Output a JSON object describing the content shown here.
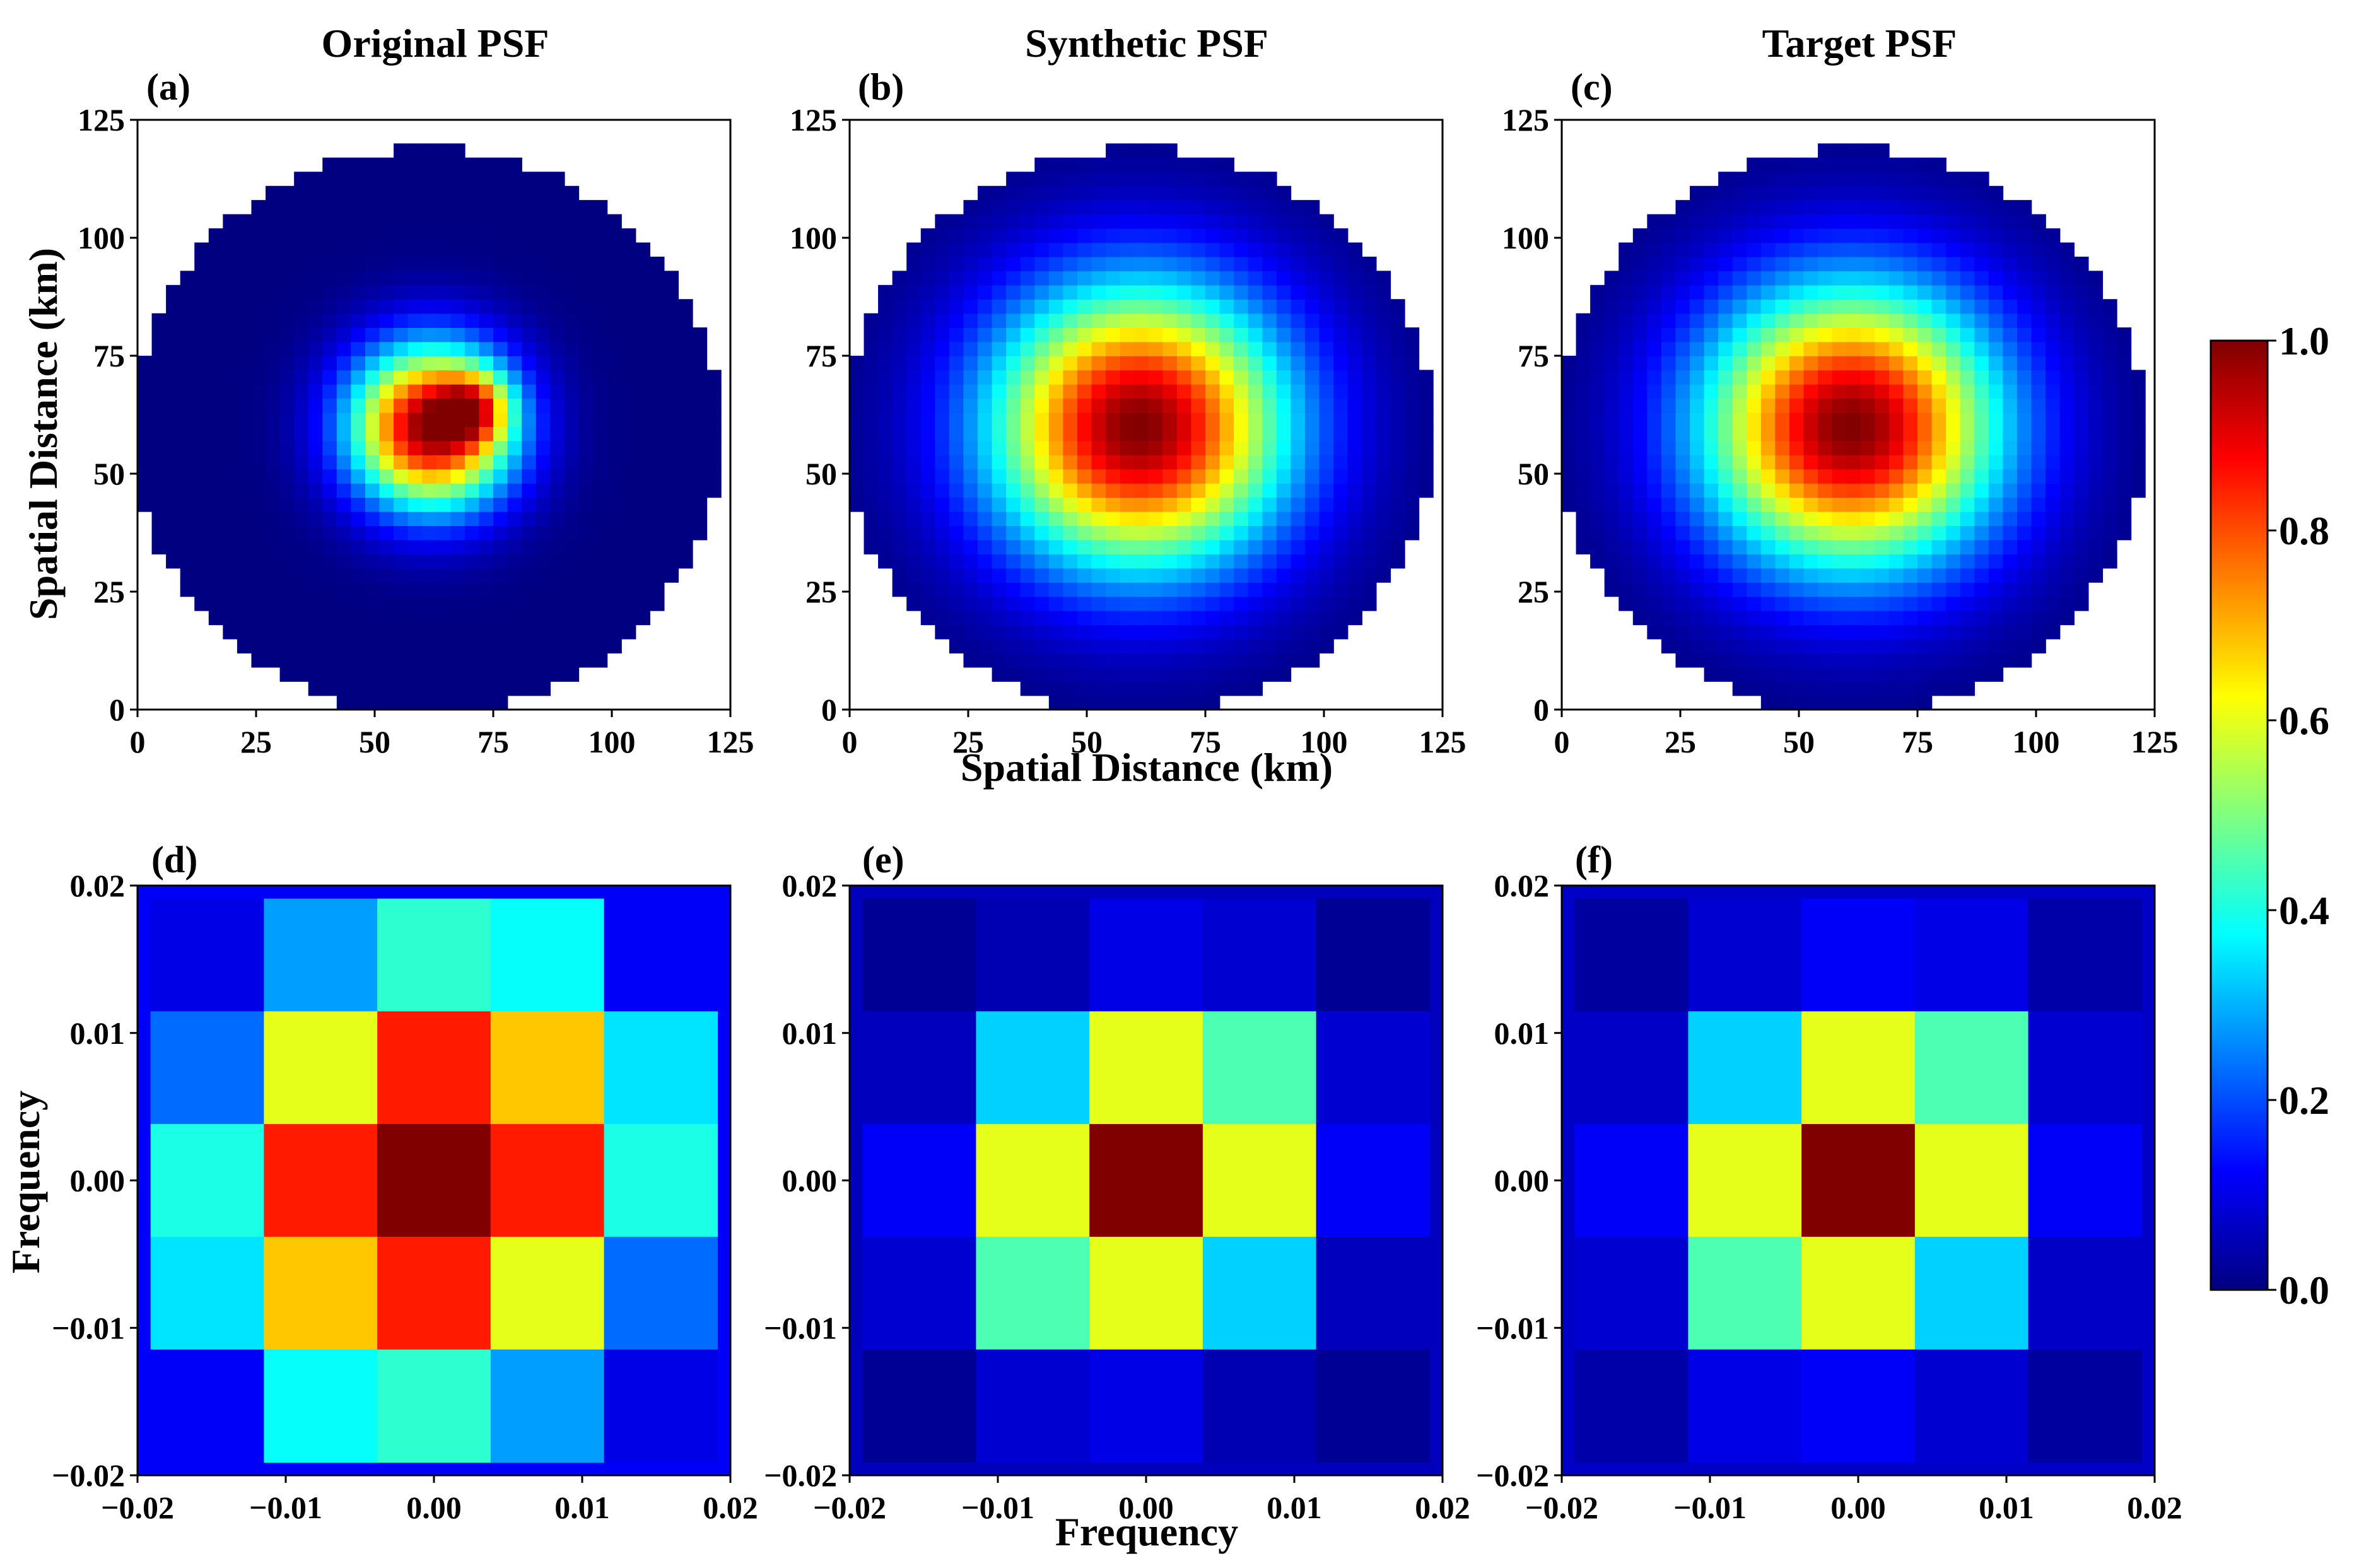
{
  "figure": {
    "panels": [
      {
        "id": "a",
        "label": "(a)",
        "title": "Original PSF"
      },
      {
        "id": "b",
        "label": "(b)",
        "title": "Synthetic PSF"
      },
      {
        "id": "c",
        "label": "(c)",
        "title": "Target PSF"
      },
      {
        "id": "d",
        "label": "(d)",
        "title": ""
      },
      {
        "id": "e",
        "label": "(e)",
        "title": ""
      },
      {
        "id": "f",
        "label": "(f)",
        "title": ""
      }
    ],
    "top_xlabel": "Spatial Distance (km)",
    "top_ylabel": "Spatial Distance (km)",
    "bottom_xlabel": "Frequency",
    "bottom_ylabel": "Frequency",
    "colorbar": {
      "ticks": [
        "0.0",
        "0.2",
        "0.4",
        "0.6",
        "0.8",
        "1.0"
      ],
      "colormap": "jet",
      "range": [
        0,
        1
      ]
    }
  },
  "chart_data": [
    {
      "type": "heatmap",
      "panel": "a",
      "title": "Original PSF",
      "xlabel": "",
      "ylabel": "Spatial Distance (km)",
      "xlim": [
        0,
        125
      ],
      "ylim": [
        0,
        125
      ],
      "grid": false,
      "xticks": [
        "0",
        "25",
        "50",
        "75",
        "100",
        "125"
      ],
      "yticks": [
        "0",
        "25",
        "50",
        "75",
        "100",
        "125"
      ],
      "center": [
        62,
        60
      ],
      "peak": 1.0,
      "sigma_x": 12,
      "sigma_y": 12,
      "lobe": {
        "center": [
          71,
          64
        ],
        "amp": 0.35,
        "sigma": 5
      },
      "support_center": [
        61,
        59
      ],
      "support_radius_x": 62,
      "support_radius_y": 60,
      "grid_step_km": 3,
      "masked": "outside support (white)"
    },
    {
      "type": "heatmap",
      "panel": "b",
      "title": "Synthetic PSF",
      "xlabel": "Spatial Distance (km)",
      "ylabel": "",
      "xlim": [
        0,
        125
      ],
      "ylim": [
        0,
        125
      ],
      "grid": false,
      "xticks": [
        "0",
        "25",
        "50",
        "75",
        "100",
        "125"
      ],
      "yticks": [
        "0",
        "25",
        "50",
        "75",
        "100",
        "125"
      ],
      "center": [
        61,
        60
      ],
      "peak": 1.0,
      "sigma_x": 22,
      "sigma_y": 21,
      "support_center": [
        61,
        59
      ],
      "support_radius_x": 62,
      "support_radius_y": 60,
      "grid_step_km": 3,
      "masked": "outside support (white)"
    },
    {
      "type": "heatmap",
      "panel": "c",
      "title": "Target PSF",
      "xlabel": "",
      "ylabel": "",
      "xlim": [
        0,
        125
      ],
      "ylim": [
        0,
        125
      ],
      "grid": false,
      "xticks": [
        "0",
        "25",
        "50",
        "75",
        "100",
        "125"
      ],
      "yticks": [
        "0",
        "25",
        "50",
        "75",
        "100",
        "125"
      ],
      "center": [
        61,
        60
      ],
      "peak": 1.0,
      "sigma_x": 22,
      "sigma_y": 21,
      "support_center": [
        61,
        59
      ],
      "support_radius_x": 62,
      "support_radius_y": 60,
      "grid_step_km": 3,
      "masked": "outside support (white)"
    },
    {
      "type": "heatmap",
      "panel": "d",
      "title": "",
      "xlabel": "",
      "ylabel": "Frequency",
      "xlim": [
        -0.02,
        0.02
      ],
      "ylim": [
        -0.02,
        0.02
      ],
      "grid": false,
      "xticks": [
        "−0.02",
        "−0.01",
        "0.00",
        "0.01",
        "0.02"
      ],
      "yticks": [
        "−0.02",
        "−0.01",
        "0.00",
        "0.01",
        "0.02"
      ],
      "values": [
        [
          0.1,
          0.28,
          0.42,
          0.38,
          0.12
        ],
        [
          0.23,
          0.6,
          0.85,
          0.68,
          0.35
        ],
        [
          0.4,
          0.85,
          1.0,
          0.85,
          0.4
        ],
        [
          0.35,
          0.68,
          0.85,
          0.6,
          0.23
        ],
        [
          0.12,
          0.38,
          0.42,
          0.28,
          0.1
        ]
      ],
      "border_value": 0.12
    },
    {
      "type": "heatmap",
      "panel": "e",
      "title": "",
      "xlabel": "Frequency",
      "ylabel": "",
      "xlim": [
        -0.02,
        0.02
      ],
      "ylim": [
        -0.02,
        0.02
      ],
      "grid": false,
      "xticks": [
        "−0.02",
        "−0.01",
        "0.00",
        "0.01",
        "0.02"
      ],
      "yticks": [
        "−0.02",
        "−0.01",
        "0.00",
        "0.01",
        "0.02"
      ],
      "values": [
        [
          0.02,
          0.05,
          0.1,
          0.08,
          0.02
        ],
        [
          0.06,
          0.33,
          0.6,
          0.45,
          0.08
        ],
        [
          0.12,
          0.6,
          1.0,
          0.6,
          0.12
        ],
        [
          0.08,
          0.45,
          0.6,
          0.33,
          0.06
        ],
        [
          0.02,
          0.08,
          0.1,
          0.05,
          0.02
        ]
      ],
      "border_value": 0.06
    },
    {
      "type": "heatmap",
      "panel": "f",
      "title": "",
      "xlabel": "",
      "ylabel": "",
      "xlim": [
        -0.02,
        0.02
      ],
      "ylim": [
        -0.02,
        0.02
      ],
      "grid": false,
      "xticks": [
        "−0.02",
        "−0.01",
        "0.00",
        "0.01",
        "0.02"
      ],
      "yticks": [
        "−0.02",
        "−0.01",
        "0.00",
        "0.01",
        "0.02"
      ],
      "values": [
        [
          0.03,
          0.08,
          0.12,
          0.1,
          0.04
        ],
        [
          0.07,
          0.33,
          0.6,
          0.45,
          0.08
        ],
        [
          0.12,
          0.6,
          1.0,
          0.6,
          0.12
        ],
        [
          0.08,
          0.45,
          0.6,
          0.33,
          0.07
        ],
        [
          0.04,
          0.1,
          0.12,
          0.08,
          0.03
        ]
      ],
      "border_value": 0.07
    }
  ]
}
